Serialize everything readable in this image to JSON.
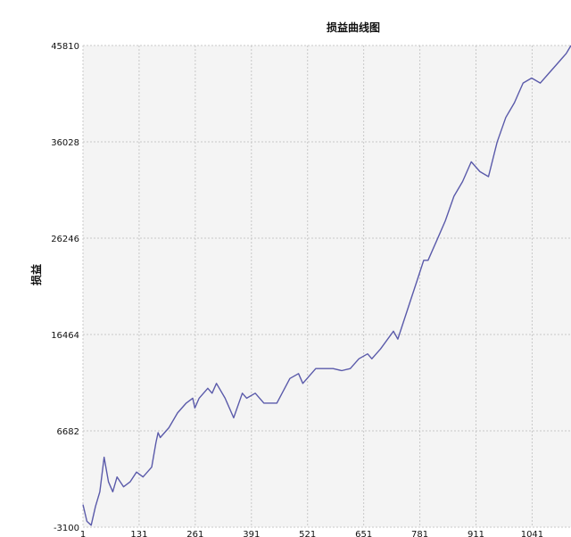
{
  "chart_data": {
    "type": "line",
    "title": "损益曲线图",
    "xlabel": "",
    "ylabel": "损益",
    "y_ticks": [
      45810,
      36028,
      26246,
      16464,
      6682,
      -3100
    ],
    "x_ticks": [
      "1",
      "131",
      "261",
      "391",
      "521",
      "651",
      "781",
      "911",
      "1041"
    ],
    "ylim": [
      -3100,
      45810
    ],
    "xlim": [
      1,
      1131
    ],
    "grid": true,
    "line_color": "#5a5aaa",
    "plot_background": "#f4f4f4",
    "grid_color": "#c8c8c8",
    "series": [
      {
        "x": [
          1,
          10,
          20,
          30,
          40,
          50,
          60,
          70,
          80,
          95,
          110,
          125,
          140,
          160,
          170,
          175,
          180,
          200,
          220,
          240,
          255,
          260,
          270,
          280,
          290,
          300,
          310,
          330,
          350,
          370,
          380,
          400,
          420,
          450,
          480,
          500,
          510,
          520,
          540,
          560,
          580,
          600,
          620,
          640,
          660,
          670,
          690,
          720,
          730,
          760,
          775,
          790,
          800,
          810,
          820,
          840,
          860,
          880,
          900,
          920,
          940,
          960,
          980,
          1000,
          1010,
          1020,
          1040,
          1060,
          1080,
          1100,
          1110,
          1120,
          1131
        ],
        "y": [
          -800,
          -2500,
          -2900,
          -1000,
          500,
          4000,
          1500,
          500,
          2000,
          1000,
          1500,
          2500,
          2000,
          3000,
          5500,
          6500,
          6000,
          7000,
          8500,
          9500,
          10000,
          9000,
          10000,
          10500,
          11000,
          10500,
          11500,
          10000,
          8000,
          10500,
          10000,
          10500,
          9500,
          9500,
          12000,
          12500,
          11500,
          12000,
          13000,
          13000,
          13000,
          12800,
          13000,
          14000,
          14500,
          14000,
          15000,
          16800,
          16000,
          20000,
          22000,
          24000,
          24000,
          25000,
          26000,
          28000,
          30500,
          32000,
          34000,
          33000,
          32500,
          36000,
          38500,
          40000,
          41000,
          42000,
          42500,
          42000,
          43000,
          44000,
          44500,
          45000,
          45810
        ]
      }
    ]
  }
}
